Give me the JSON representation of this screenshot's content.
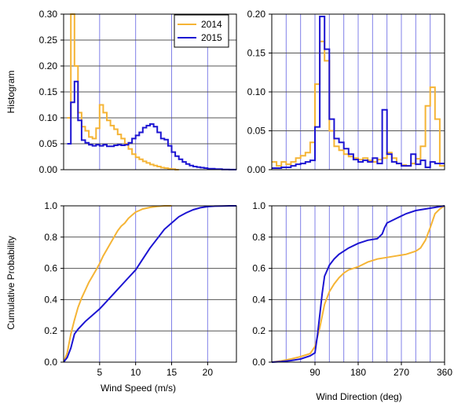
{
  "colors": {
    "y2014": "#f5b435",
    "y2015": "#1c14d2",
    "grid_v": "#8080e8",
    "grid_h": "#555555"
  },
  "chart_data": [
    {
      "id": "speed_hist",
      "type": "line",
      "xlim": [
        0,
        24
      ],
      "ylim": [
        0,
        0.3
      ],
      "yticks": [
        "0.00",
        "0.05",
        "0.10",
        "0.15",
        "0.20",
        "0.25",
        "0.30"
      ],
      "ylabel": "Histogram",
      "legend": {
        "position": "top-right",
        "entries": [
          "2014",
          "2015"
        ]
      },
      "series": [
        {
          "name": "2014",
          "step": true,
          "x": [
            0.5,
            1,
            1.5,
            2,
            2.5,
            3,
            3.5,
            4,
            4.5,
            5,
            5.5,
            6,
            6.5,
            7,
            7.5,
            8,
            8.5,
            9,
            9.5,
            10,
            10.5,
            11,
            11.5,
            12,
            12.5,
            13,
            13.5,
            14,
            14.5,
            15,
            15.5
          ],
          "y": [
            0.1,
            0.3,
            0.2,
            0.11,
            0.083,
            0.075,
            0.063,
            0.06,
            0.08,
            0.125,
            0.11,
            0.095,
            0.085,
            0.078,
            0.068,
            0.06,
            0.05,
            0.04,
            0.03,
            0.024,
            0.02,
            0.016,
            0.013,
            0.01,
            0.008,
            0.006,
            0.004,
            0.003,
            0.002,
            0.001,
            0.0
          ]
        },
        {
          "name": "2015",
          "step": true,
          "x": [
            0.5,
            1,
            1.5,
            2,
            2.5,
            3,
            3.5,
            4,
            4.5,
            5,
            5.5,
            6,
            6.5,
            7,
            7.5,
            8,
            8.5,
            9,
            9.5,
            10,
            10.5,
            11,
            11.5,
            12,
            12.5,
            13,
            13.5,
            14,
            14.5,
            15,
            15.5,
            16,
            16.5,
            17,
            17.5,
            18,
            18.5,
            19,
            19.5,
            20,
            20.5,
            21,
            22,
            23
          ],
          "y": [
            0.05,
            0.13,
            0.17,
            0.095,
            0.057,
            0.052,
            0.048,
            0.046,
            0.048,
            0.046,
            0.048,
            0.045,
            0.045,
            0.047,
            0.048,
            0.047,
            0.048,
            0.052,
            0.06,
            0.066,
            0.072,
            0.081,
            0.085,
            0.088,
            0.083,
            0.072,
            0.06,
            0.058,
            0.046,
            0.034,
            0.026,
            0.02,
            0.015,
            0.011,
            0.008,
            0.006,
            0.005,
            0.004,
            0.003,
            0.002,
            0.002,
            0.001,
            0.0005,
            0.0002
          ]
        }
      ]
    },
    {
      "id": "dir_hist",
      "type": "line",
      "xlim": [
        0,
        360
      ],
      "ylim": [
        0,
        0.2
      ],
      "yticks": [
        "0.00",
        "0.05",
        "0.10",
        "0.15",
        "0.20"
      ],
      "series": [
        {
          "name": "2014",
          "step": true,
          "x": [
            0,
            10,
            20,
            30,
            40,
            50,
            60,
            70,
            80,
            90,
            100,
            110,
            120,
            130,
            140,
            150,
            160,
            170,
            180,
            190,
            200,
            210,
            220,
            230,
            240,
            250,
            260,
            270,
            280,
            290,
            300,
            310,
            320,
            330,
            340,
            350
          ],
          "y": [
            0.01,
            0.005,
            0.01,
            0.007,
            0.01,
            0.015,
            0.018,
            0.022,
            0.035,
            0.11,
            0.165,
            0.14,
            0.05,
            0.03,
            0.025,
            0.02,
            0.017,
            0.015,
            0.013,
            0.015,
            0.012,
            0.01,
            0.013,
            0.015,
            0.022,
            0.015,
            0.008,
            0.006,
            0.005,
            0.008,
            0.014,
            0.03,
            0.082,
            0.106,
            0.065,
            0.005
          ]
        },
        {
          "name": "2015",
          "step": true,
          "x": [
            0,
            10,
            20,
            30,
            40,
            50,
            60,
            70,
            80,
            90,
            100,
            110,
            120,
            130,
            140,
            150,
            160,
            170,
            180,
            190,
            200,
            210,
            220,
            230,
            240,
            250,
            260,
            270,
            280,
            290,
            300,
            310,
            320,
            330,
            340,
            350
          ],
          "y": [
            0.002,
            0.002,
            0.003,
            0.003,
            0.005,
            0.007,
            0.008,
            0.01,
            0.012,
            0.055,
            0.197,
            0.155,
            0.065,
            0.04,
            0.035,
            0.027,
            0.02,
            0.013,
            0.01,
            0.012,
            0.01,
            0.015,
            0.008,
            0.077,
            0.02,
            0.01,
            0.008,
            0.005,
            0.005,
            0.02,
            0.007,
            0.012,
            0.003,
            0.01,
            0.008,
            0.008
          ]
        }
      ]
    },
    {
      "id": "speed_cdf",
      "type": "line",
      "xlim": [
        0,
        24
      ],
      "ylim": [
        0,
        1
      ],
      "xticks": [
        5,
        10,
        15,
        20
      ],
      "yticks": [
        "0.0",
        "0.2",
        "0.4",
        "0.6",
        "0.8",
        "1.0"
      ],
      "xlabel": "Wind Speed (m/s)",
      "ylabel": "Cumulative Probability",
      "series": [
        {
          "name": "2014",
          "x": [
            0,
            0.5,
            1,
            1.5,
            2,
            2.5,
            3,
            3.5,
            4,
            4.5,
            5,
            5.5,
            6,
            6.5,
            7,
            7.5,
            8,
            8.5,
            9,
            9.5,
            10,
            10.5,
            11,
            11.5,
            12,
            12.5,
            13,
            13.5,
            14,
            15
          ],
          "y": [
            0,
            0.06,
            0.18,
            0.27,
            0.35,
            0.41,
            0.46,
            0.51,
            0.55,
            0.59,
            0.63,
            0.68,
            0.72,
            0.76,
            0.8,
            0.84,
            0.87,
            0.89,
            0.92,
            0.94,
            0.96,
            0.97,
            0.98,
            0.985,
            0.99,
            0.993,
            0.996,
            0.998,
            1.0,
            1.0
          ]
        },
        {
          "name": "2015",
          "x": [
            0,
            0.5,
            1,
            1.5,
            2,
            3,
            4,
            5,
            6,
            7,
            8,
            9,
            10,
            11,
            12,
            13,
            14,
            15,
            16,
            17,
            18,
            19,
            20,
            21,
            22,
            23,
            24
          ],
          "y": [
            0,
            0.03,
            0.09,
            0.18,
            0.21,
            0.26,
            0.3,
            0.34,
            0.39,
            0.44,
            0.49,
            0.54,
            0.59,
            0.66,
            0.73,
            0.79,
            0.85,
            0.89,
            0.93,
            0.955,
            0.975,
            0.988,
            0.995,
            0.998,
            0.999,
            1.0,
            1.0
          ]
        }
      ]
    },
    {
      "id": "dir_cdf",
      "type": "line",
      "xlim": [
        0,
        360
      ],
      "ylim": [
        0,
        1
      ],
      "xticks": [
        90,
        180,
        270,
        360
      ],
      "yticks": [
        "0.0",
        "0.2",
        "0.4",
        "0.6",
        "0.8",
        "1.0"
      ],
      "xlabel": "Wind Direction (deg)",
      "series": [
        {
          "name": "2014",
          "x": [
            0,
            20,
            40,
            60,
            80,
            90,
            100,
            110,
            120,
            130,
            140,
            150,
            160,
            180,
            200,
            220,
            240,
            260,
            280,
            300,
            310,
            320,
            330,
            340,
            350,
            360
          ],
          "y": [
            0,
            0.008,
            0.02,
            0.035,
            0.055,
            0.1,
            0.22,
            0.37,
            0.45,
            0.5,
            0.54,
            0.57,
            0.59,
            0.61,
            0.64,
            0.66,
            0.67,
            0.68,
            0.69,
            0.71,
            0.73,
            0.78,
            0.86,
            0.95,
            0.98,
            1.0
          ]
        },
        {
          "name": "2015",
          "x": [
            0,
            20,
            40,
            60,
            80,
            90,
            95,
            100,
            105,
            110,
            120,
            130,
            140,
            160,
            180,
            200,
            220,
            230,
            235,
            240,
            260,
            280,
            300,
            320,
            340,
            350,
            360
          ],
          "y": [
            0,
            0.004,
            0.01,
            0.02,
            0.04,
            0.06,
            0.17,
            0.3,
            0.44,
            0.55,
            0.62,
            0.66,
            0.69,
            0.73,
            0.76,
            0.78,
            0.79,
            0.82,
            0.86,
            0.89,
            0.92,
            0.95,
            0.97,
            0.98,
            0.99,
            0.995,
            1.0
          ]
        }
      ]
    }
  ]
}
